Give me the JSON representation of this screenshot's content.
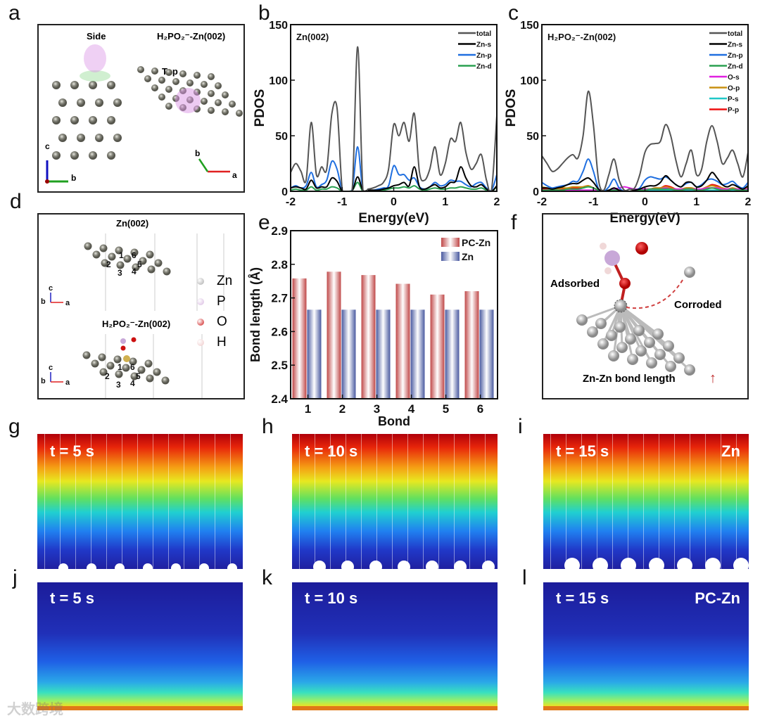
{
  "panels": {
    "a": "a",
    "b": "b",
    "c": "c",
    "d": "d",
    "e": "e",
    "f": "f",
    "g": "g",
    "h": "h",
    "i": "i",
    "j": "j",
    "k": "k",
    "l": "l"
  },
  "panel_a": {
    "side": "Side",
    "top": "Top",
    "title": "H₂PO₂⁻-Zn(002)",
    "axes_left": [
      "c",
      "b"
    ],
    "axes_right": [
      "b",
      "a"
    ]
  },
  "panel_d": {
    "top_title": "Zn(002)",
    "bottom_title": "H₂PO₂⁻-Zn(002)",
    "bond_numbers": [
      "1",
      "2",
      "3",
      "4",
      "5",
      "6"
    ],
    "axes": [
      "c",
      "b",
      "a"
    ],
    "legend": [
      {
        "label": "Zn",
        "color": "#a8a8a8"
      },
      {
        "label": "P",
        "color": "#d7b8e0"
      },
      {
        "label": "O",
        "color": "#cc1010"
      },
      {
        "label": "H",
        "color": "#eec8c8"
      }
    ]
  },
  "panel_f": {
    "adsorbed": "Adsorbed",
    "corroded": "Corroded",
    "caption": "Zn-Zn bond length"
  },
  "heatmaps": {
    "top": [
      {
        "label": "t = 5 s"
      },
      {
        "label": "t = 10 s"
      },
      {
        "label": "t = 15 s",
        "tag": "Zn"
      }
    ],
    "bottom": [
      {
        "label": "t = 5 s"
      },
      {
        "label": "t = 10 s"
      },
      {
        "label": "t = 15 s",
        "tag": "PC-Zn"
      }
    ]
  },
  "watermark": "大数跨境",
  "chart_data": [
    {
      "type": "line",
      "title": "Zn(002)",
      "xlabel": "Energy(eV)",
      "ylabel": "PDOS",
      "xlim": [
        -2,
        2
      ],
      "ylim": [
        0,
        150
      ],
      "xticks": [
        "-2",
        "-1",
        "0",
        "1",
        "2"
      ],
      "yticks": [
        "0",
        "50",
        "100",
        "150"
      ],
      "legend_position": "top-right",
      "series": [
        {
          "name": "total",
          "color": "#555555",
          "x_start": -2,
          "x_step": 0.1,
          "values": [
            17,
            25,
            18,
            10,
            62,
            15,
            22,
            20,
            70,
            75,
            2,
            0,
            5,
            130,
            3,
            2,
            3,
            5,
            8,
            20,
            60,
            50,
            62,
            45,
            70,
            17,
            10,
            20,
            40,
            15,
            25,
            47,
            45,
            62,
            35,
            20,
            25,
            33,
            10,
            2,
            68
          ]
        },
        {
          "name": "Zn-s",
          "color": "#000000",
          "x_start": -2,
          "x_step": 0.1,
          "values": [
            3,
            4,
            3,
            2,
            10,
            3,
            4,
            4,
            12,
            9,
            0,
            0,
            1,
            13,
            1,
            1,
            1,
            1,
            2,
            3,
            5,
            6,
            8,
            5,
            22,
            4,
            2,
            4,
            6,
            3,
            4,
            8,
            9,
            22,
            12,
            5,
            4,
            6,
            2,
            0,
            5
          ]
        },
        {
          "name": "Zn-p",
          "color": "#1f6fe0",
          "x_start": -2,
          "x_step": 0.1,
          "values": [
            3,
            5,
            3,
            5,
            17,
            4,
            6,
            10,
            27,
            20,
            1,
            0,
            3,
            40,
            1,
            1,
            1,
            2,
            3,
            5,
            23,
            15,
            15,
            10,
            12,
            4,
            2,
            4,
            8,
            5,
            6,
            10,
            9,
            9,
            6,
            4,
            7,
            8,
            3,
            1,
            15
          ]
        },
        {
          "name": "Zn-d",
          "color": "#2aa050",
          "x_start": -2,
          "x_step": 0.1,
          "values": [
            1,
            2,
            1,
            1,
            4,
            1,
            2,
            2,
            4,
            3,
            0,
            0,
            1,
            8,
            0,
            0,
            0,
            1,
            1,
            2,
            3,
            3,
            4,
            3,
            5,
            2,
            1,
            2,
            3,
            2,
            2,
            3,
            3,
            4,
            3,
            2,
            2,
            3,
            1,
            0,
            4
          ]
        }
      ]
    },
    {
      "type": "line",
      "title": "H₂PO₂⁻-Zn(002)",
      "xlabel": "Energy(eV)",
      "ylabel": "PDOS",
      "xlim": [
        -2,
        2
      ],
      "ylim": [
        0,
        150
      ],
      "xticks": [
        "-2",
        "-1",
        "0",
        "1",
        "2"
      ],
      "yticks": [
        "0",
        "50",
        "100",
        "150"
      ],
      "legend_position": "top-right",
      "series": [
        {
          "name": "total",
          "color": "#555555",
          "x_start": -2,
          "x_step": 0.1,
          "values": [
            32,
            25,
            18,
            20,
            25,
            30,
            33,
            30,
            50,
            90,
            60,
            10,
            1,
            15,
            29,
            10,
            1,
            2,
            3,
            15,
            35,
            42,
            43,
            45,
            60,
            50,
            28,
            13,
            25,
            37,
            15,
            20,
            45,
            59,
            45,
            25,
            30,
            37,
            25,
            13,
            35
          ]
        },
        {
          "name": "Zn-s",
          "color": "#000000",
          "x_start": -2,
          "x_step": 0.1,
          "values": [
            3,
            3,
            2,
            3,
            4,
            6,
            7,
            7,
            10,
            12,
            8,
            2,
            0,
            1,
            3,
            1,
            0,
            0,
            1,
            2,
            4,
            5,
            5,
            8,
            14,
            10,
            6,
            4,
            8,
            8,
            4,
            5,
            10,
            17,
            12,
            6,
            4,
            6,
            4,
            2,
            5
          ]
        },
        {
          "name": "Zn-p",
          "color": "#1f6fe0",
          "x_start": -2,
          "x_step": 0.1,
          "values": [
            8,
            5,
            3,
            4,
            5,
            6,
            9,
            9,
            18,
            29,
            18,
            2,
            0,
            4,
            11,
            3,
            0,
            0,
            1,
            3,
            10,
            13,
            12,
            11,
            13,
            10,
            6,
            4,
            7,
            8,
            4,
            6,
            10,
            11,
            9,
            6,
            7,
            9,
            5,
            3,
            8
          ]
        },
        {
          "name": "Zn-d",
          "color": "#2aa050",
          "x_start": -2,
          "x_step": 0.1,
          "values": [
            1,
            1,
            1,
            1,
            1,
            2,
            2,
            2,
            3,
            4,
            3,
            1,
            0,
            1,
            1,
            1,
            0,
            0,
            0,
            1,
            1,
            2,
            2,
            2,
            2,
            2,
            1,
            1,
            2,
            2,
            1,
            1,
            2,
            3,
            2,
            1,
            1,
            2,
            1,
            1,
            1
          ]
        },
        {
          "name": "O-s",
          "color": "#e020e0",
          "x_start": -2,
          "x_step": 0.1,
          "values": [
            1,
            1,
            1,
            1,
            1,
            1,
            1,
            1,
            1,
            1,
            1,
            0,
            0,
            1,
            2,
            3,
            4,
            3,
            2,
            2,
            2,
            2,
            2,
            2,
            3,
            2,
            2,
            2,
            2,
            2,
            2,
            2,
            3,
            3,
            3,
            2,
            2,
            2,
            2,
            2,
            2
          ]
        },
        {
          "name": "O-p",
          "color": "#c89010",
          "x_start": -2,
          "x_step": 0.1,
          "values": [
            4,
            3,
            2,
            2,
            3,
            3,
            4,
            4,
            4,
            5,
            3,
            1,
            0,
            1,
            2,
            1,
            0,
            0,
            1,
            1,
            2,
            2,
            3,
            3,
            4,
            3,
            2,
            2,
            3,
            3,
            2,
            2,
            4,
            5,
            4,
            3,
            2,
            3,
            2,
            2,
            3
          ]
        },
        {
          "name": "P-s",
          "color": "#20c8c8",
          "x_start": -2,
          "x_step": 0.1,
          "values": [
            1,
            1,
            1,
            1,
            1,
            1,
            1,
            1,
            1,
            1,
            1,
            0,
            0,
            0,
            1,
            0,
            0,
            0,
            0,
            0,
            1,
            1,
            1,
            1,
            1,
            1,
            1,
            1,
            1,
            1,
            1,
            1,
            1,
            1,
            1,
            1,
            1,
            1,
            1,
            1,
            1
          ]
        },
        {
          "name": "P-p",
          "color": "#ee1010",
          "x_start": -2,
          "x_step": 0.1,
          "values": [
            2,
            2,
            2,
            2,
            2,
            2,
            3,
            3,
            4,
            5,
            3,
            1,
            0,
            1,
            1,
            1,
            0,
            0,
            1,
            1,
            2,
            2,
            3,
            3,
            5,
            4,
            2,
            2,
            3,
            3,
            2,
            2,
            4,
            6,
            5,
            3,
            2,
            3,
            2,
            2,
            3
          ]
        }
      ]
    },
    {
      "type": "bar",
      "title": "",
      "xlabel": "Bond",
      "ylabel": "Bond length (Å)",
      "ylim": [
        2.4,
        2.9
      ],
      "yticks": [
        "2.4",
        "2.5",
        "2.6",
        "2.7",
        "2.8",
        "2.9"
      ],
      "categories": [
        "1",
        "2",
        "3",
        "4",
        "5",
        "6"
      ],
      "legend_position": "top-right",
      "series": [
        {
          "name": "PC-Zn",
          "color": "#c85a5a",
          "values": [
            2.758,
            2.778,
            2.768,
            2.742,
            2.71,
            2.72
          ]
        },
        {
          "name": "Zn",
          "color": "#5a6aa8",
          "values": [
            2.665,
            2.665,
            2.665,
            2.665,
            2.665,
            2.665
          ]
        }
      ]
    }
  ]
}
